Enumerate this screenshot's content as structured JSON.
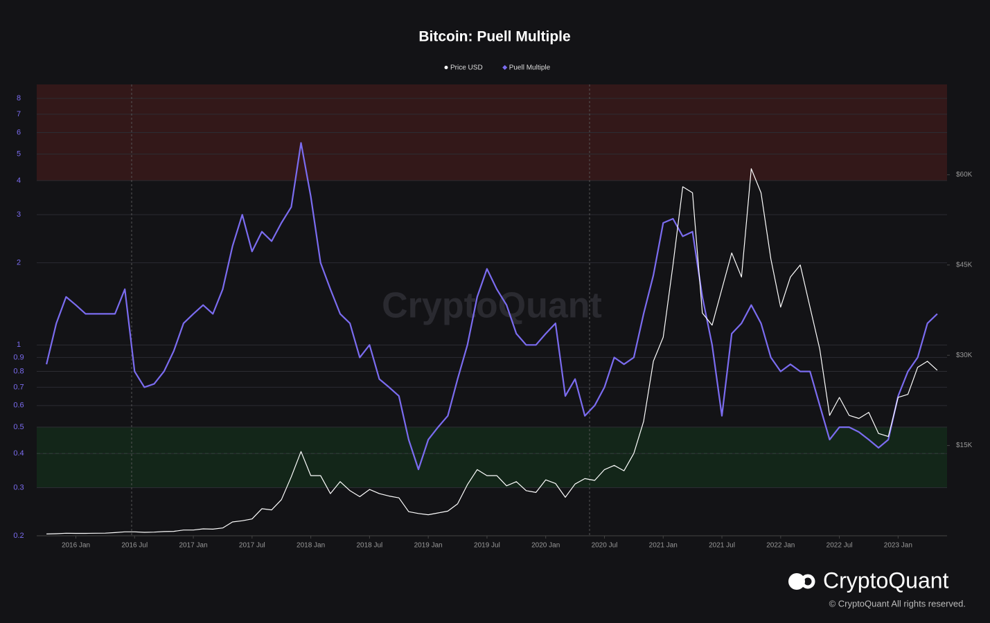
{
  "chart_data": {
    "type": "line",
    "title": "Bitcoin: Puell Multiple",
    "x": [
      "2015-10",
      "2015-11",
      "2015-12",
      "2016-01",
      "2016-02",
      "2016-03",
      "2016-04",
      "2016-05",
      "2016-06",
      "2016-07",
      "2016-08",
      "2016-09",
      "2016-10",
      "2016-11",
      "2016-12",
      "2017-01",
      "2017-02",
      "2017-03",
      "2017-04",
      "2017-05",
      "2017-06",
      "2017-07",
      "2017-08",
      "2017-09",
      "2017-10",
      "2017-11",
      "2017-12",
      "2018-01",
      "2018-02",
      "2018-03",
      "2018-04",
      "2018-05",
      "2018-06",
      "2018-07",
      "2018-08",
      "2018-09",
      "2018-10",
      "2018-11",
      "2018-12",
      "2019-01",
      "2019-02",
      "2019-03",
      "2019-04",
      "2019-05",
      "2019-06",
      "2019-07",
      "2019-08",
      "2019-09",
      "2019-10",
      "2019-11",
      "2019-12",
      "2020-01",
      "2020-02",
      "2020-03",
      "2020-04",
      "2020-05",
      "2020-06",
      "2020-07",
      "2020-08",
      "2020-09",
      "2020-10",
      "2020-11",
      "2020-12",
      "2021-01",
      "2021-02",
      "2021-03",
      "2021-04",
      "2021-05",
      "2021-06",
      "2021-07",
      "2021-08",
      "2021-09",
      "2021-10",
      "2021-11",
      "2021-12",
      "2022-01",
      "2022-02",
      "2022-03",
      "2022-04",
      "2022-05",
      "2022-06",
      "2022-07",
      "2022-08",
      "2022-09",
      "2022-10",
      "2022-11",
      "2022-12",
      "2023-01",
      "2023-02",
      "2023-03",
      "2023-04",
      "2023-05"
    ],
    "series": [
      {
        "name": "Price USD",
        "color": "#ffffff",
        "axis": "y2",
        "marker": "circle",
        "values": [
          300,
          350,
          430,
          400,
          400,
          420,
          440,
          530,
          650,
          650,
          580,
          610,
          700,
          740,
          960,
          950,
          1150,
          1100,
          1300,
          2300,
          2500,
          2800,
          4500,
          4300,
          6000,
          9800,
          14000,
          10000,
          10000,
          7000,
          9000,
          7500,
          6500,
          7700,
          7000,
          6600,
          6300,
          4000,
          3700,
          3500,
          3800,
          4100,
          5300,
          8500,
          11000,
          10000,
          10000,
          8300,
          9000,
          7500,
          7200,
          9300,
          8700,
          6400,
          8600,
          9500,
          9200,
          11000,
          11700,
          10800,
          13700,
          19000,
          29000,
          33000,
          45000,
          58000,
          57000,
          37000,
          35000,
          41000,
          47000,
          43000,
          61000,
          57000,
          46000,
          38000,
          43000,
          45000,
          38000,
          31000,
          20000,
          23000,
          20000,
          19500,
          20500,
          17000,
          16500,
          23000,
          23500,
          28000,
          29000,
          27500
        ]
      },
      {
        "name": "Puell Multiple",
        "color": "#7b6cf0",
        "axis": "y",
        "marker": "diamond",
        "values": [
          0.85,
          1.2,
          1.5,
          1.4,
          1.3,
          1.3,
          1.3,
          1.3,
          1.6,
          0.8,
          0.7,
          0.72,
          0.8,
          0.95,
          1.2,
          1.3,
          1.4,
          1.3,
          1.6,
          2.3,
          3.0,
          2.2,
          2.6,
          2.4,
          2.8,
          3.2,
          5.5,
          3.5,
          2.0,
          1.6,
          1.3,
          1.2,
          0.9,
          1.0,
          0.75,
          0.7,
          0.65,
          0.45,
          0.35,
          0.45,
          0.5,
          0.55,
          0.75,
          1.0,
          1.5,
          1.9,
          1.6,
          1.4,
          1.1,
          1.0,
          1.0,
          1.1,
          1.2,
          0.65,
          0.75,
          0.55,
          0.6,
          0.7,
          0.9,
          0.85,
          0.9,
          1.3,
          1.8,
          2.8,
          2.9,
          2.5,
          2.6,
          1.5,
          1.0,
          0.55,
          1.1,
          1.2,
          1.4,
          1.2,
          0.9,
          0.8,
          0.85,
          0.8,
          0.8,
          0.6,
          0.45,
          0.5,
          0.5,
          0.48,
          0.45,
          0.42,
          0.45,
          0.65,
          0.8,
          0.9,
          1.2,
          1.3
        ]
      }
    ],
    "xlim": [
      "2015-09",
      "2023-06"
    ],
    "xticks": [
      {
        "value": "2016-01",
        "label": "2016 Jan"
      },
      {
        "value": "2016-07",
        "label": "2016 Jul"
      },
      {
        "value": "2017-01",
        "label": "2017 Jan"
      },
      {
        "value": "2017-07",
        "label": "2017 Jul"
      },
      {
        "value": "2018-01",
        "label": "2018 Jan"
      },
      {
        "value": "2018-07",
        "label": "2018 Jul"
      },
      {
        "value": "2019-01",
        "label": "2019 Jan"
      },
      {
        "value": "2019-07",
        "label": "2019 Jul"
      },
      {
        "value": "2020-01",
        "label": "2020 Jan"
      },
      {
        "value": "2020-07",
        "label": "2020 Jul"
      },
      {
        "value": "2021-01",
        "label": "2021 Jan"
      },
      {
        "value": "2021-07",
        "label": "2021 Jul"
      },
      {
        "value": "2022-01",
        "label": "2022 Jan"
      },
      {
        "value": "2022-07",
        "label": "2022 Jul"
      },
      {
        "value": "2023-01",
        "label": "2023 Jan"
      }
    ],
    "ylim": [
      0.2,
      9
    ],
    "ylog": true,
    "yticks": [
      0.2,
      0.3,
      0.4,
      0.5,
      0.6,
      0.7,
      0.8,
      0.9,
      1,
      2,
      3,
      4,
      5,
      6,
      7,
      8
    ],
    "y2lim": [
      0,
      75000
    ],
    "y2ticks": [
      {
        "value": 15000,
        "label": "$15K"
      },
      {
        "value": 30000,
        "label": "$30K"
      },
      {
        "value": 45000,
        "label": "$45K"
      },
      {
        "value": 60000,
        "label": "$60K"
      }
    ],
    "zones": [
      {
        "from": 4,
        "to": 9,
        "color": "#3a1a1a"
      },
      {
        "from": 0.3,
        "to": 0.5,
        "color": "#142a1a"
      }
    ],
    "reference_lines": [
      {
        "value": 6,
        "color": "#8a3a3a"
      },
      {
        "value": 0.4,
        "color": "#3f8a4f"
      }
    ],
    "grid": true
  },
  "branding": {
    "watermark": "CryptoQuant",
    "logo": "CryptoQuant",
    "copyright": "© CryptoQuant All rights reserved."
  }
}
